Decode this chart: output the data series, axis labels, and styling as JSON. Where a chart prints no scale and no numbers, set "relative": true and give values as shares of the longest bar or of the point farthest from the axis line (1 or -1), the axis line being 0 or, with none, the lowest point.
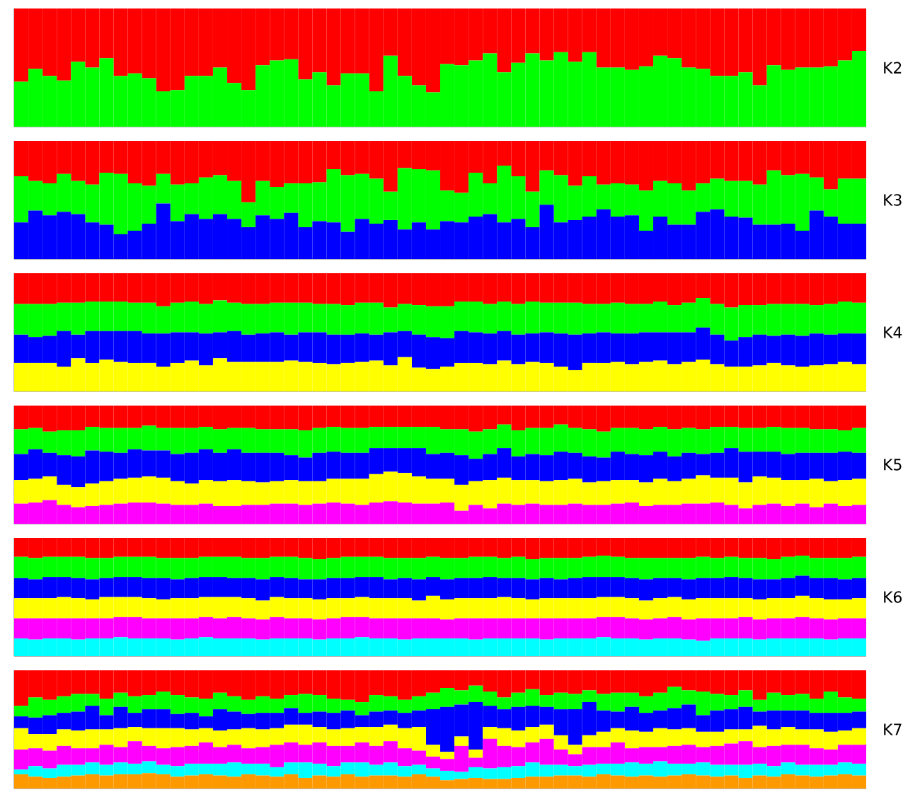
{
  "chart_data": [
    {
      "type": "bar",
      "stacked": true,
      "relative": true,
      "ylabel": "K2",
      "categories": [
        null,
        null,
        null,
        null,
        null,
        null,
        null,
        null,
        null,
        null,
        null,
        null,
        null,
        null,
        null,
        null,
        null,
        null,
        null,
        null,
        null,
        null,
        null,
        null,
        null,
        null,
        null,
        null,
        null,
        null,
        null,
        null,
        null,
        null,
        null,
        null,
        null,
        null,
        null,
        null,
        null,
        null,
        null,
        null,
        null,
        null,
        null,
        null,
        null,
        null,
        null,
        null,
        null,
        null,
        null,
        null,
        null,
        null,
        null,
        null
      ],
      "series": [
        {
          "color": "#00ff00",
          "values": [
            0.38,
            0.49,
            0.43,
            0.39,
            0.55,
            0.5,
            0.58,
            0.43,
            0.45,
            0.41,
            0.3,
            0.31,
            0.43,
            0.43,
            0.5,
            0.37,
            0.31,
            0.52,
            0.56,
            0.57,
            0.4,
            0.46,
            0.35,
            0.45,
            0.45,
            0.3,
            0.6,
            0.43,
            0.35,
            0.29,
            0.53,
            0.52,
            0.56,
            0.62,
            0.46,
            0.54,
            0.62,
            0.56,
            0.63,
            0.55,
            0.63,
            0.5,
            0.5,
            0.48,
            0.51,
            0.6,
            0.58,
            0.5,
            0.49,
            0.43,
            0.43,
            0.46,
            0.35,
            0.52,
            0.48,
            0.5,
            0.5,
            0.51,
            0.56,
            0.64
          ]
        },
        {
          "color": "#ff0000",
          "values": [
            0.62,
            0.51,
            0.57,
            0.61,
            0.45,
            0.5,
            0.42,
            0.57,
            0.55,
            0.59,
            0.7,
            0.69,
            0.57,
            0.57,
            0.5,
            0.63,
            0.69,
            0.48,
            0.44,
            0.43,
            0.6,
            0.54,
            0.65,
            0.55,
            0.55,
            0.7,
            0.4,
            0.57,
            0.65,
            0.71,
            0.47,
            0.48,
            0.44,
            0.38,
            0.54,
            0.46,
            0.38,
            0.44,
            0.37,
            0.45,
            0.37,
            0.5,
            0.5,
            0.52,
            0.49,
            0.4,
            0.42,
            0.5,
            0.51,
            0.57,
            0.57,
            0.54,
            0.65,
            0.48,
            0.52,
            0.5,
            0.5,
            0.49,
            0.44,
            0.36
          ]
        }
      ]
    },
    {
      "type": "bar",
      "stacked": true,
      "relative": true,
      "ylabel": "K3",
      "categories": [
        null,
        null,
        null,
        null,
        null,
        null,
        null,
        null,
        null,
        null,
        null,
        null,
        null,
        null,
        null,
        null,
        null,
        null,
        null,
        null,
        null,
        null,
        null,
        null,
        null,
        null,
        null,
        null,
        null,
        null,
        null,
        null,
        null,
        null,
        null,
        null,
        null,
        null,
        null,
        null,
        null,
        null,
        null,
        null,
        null,
        null,
        null,
        null,
        null,
        null,
        null,
        null,
        null,
        null,
        null,
        null,
        null,
        null,
        null,
        null
      ],
      "series": [
        {
          "color": "#0000ff",
          "values": [
            0.31,
            0.41,
            0.37,
            0.4,
            0.38,
            0.31,
            0.29,
            0.21,
            0.24,
            0.3,
            0.47,
            0.32,
            0.38,
            0.34,
            0.38,
            0.34,
            0.27,
            0.37,
            0.34,
            0.39,
            0.27,
            0.32,
            0.31,
            0.23,
            0.34,
            0.3,
            0.33,
            0.25,
            0.31,
            0.25,
            0.32,
            0.31,
            0.36,
            0.38,
            0.31,
            0.34,
            0.27,
            0.46,
            0.31,
            0.33,
            0.36,
            0.42,
            0.36,
            0.37,
            0.24,
            0.36,
            0.29,
            0.29,
            0.4,
            0.42,
            0.36,
            0.35,
            0.29,
            0.29,
            0.3,
            0.24,
            0.41,
            0.36,
            0.3,
            0.3
          ]
        },
        {
          "color": "#00ff00",
          "values": [
            0.39,
            0.25,
            0.27,
            0.32,
            0.28,
            0.32,
            0.44,
            0.51,
            0.4,
            0.32,
            0.25,
            0.31,
            0.26,
            0.35,
            0.33,
            0.32,
            0.21,
            0.29,
            0.27,
            0.25,
            0.37,
            0.33,
            0.45,
            0.48,
            0.38,
            0.38,
            0.24,
            0.52,
            0.45,
            0.5,
            0.26,
            0.25,
            0.37,
            0.26,
            0.48,
            0.36,
            0.3,
            0.29,
            0.4,
            0.29,
            0.34,
            0.21,
            0.28,
            0.26,
            0.34,
            0.3,
            0.35,
            0.29,
            0.24,
            0.26,
            0.3,
            0.31,
            0.34,
            0.46,
            0.41,
            0.48,
            0.28,
            0.23,
            0.38,
            0.38
          ]
        },
        {
          "color": "#ff0000",
          "values": [
            0.3,
            0.34,
            0.36,
            0.28,
            0.34,
            0.37,
            0.27,
            0.28,
            0.36,
            0.38,
            0.28,
            0.37,
            0.36,
            0.31,
            0.29,
            0.34,
            0.52,
            0.34,
            0.39,
            0.36,
            0.36,
            0.35,
            0.24,
            0.29,
            0.28,
            0.32,
            0.43,
            0.23,
            0.24,
            0.25,
            0.42,
            0.44,
            0.27,
            0.36,
            0.21,
            0.3,
            0.43,
            0.25,
            0.29,
            0.38,
            0.3,
            0.37,
            0.36,
            0.37,
            0.42,
            0.34,
            0.36,
            0.42,
            0.36,
            0.32,
            0.34,
            0.34,
            0.37,
            0.25,
            0.29,
            0.28,
            0.31,
            0.41,
            0.32,
            0.32
          ]
        }
      ]
    },
    {
      "type": "bar",
      "stacked": true,
      "relative": true,
      "ylabel": "K4",
      "categories": [
        null,
        null,
        null,
        null,
        null,
        null,
        null,
        null,
        null,
        null,
        null,
        null,
        null,
        null,
        null,
        null,
        null,
        null,
        null,
        null,
        null,
        null,
        null,
        null,
        null,
        null,
        null,
        null,
        null,
        null,
        null,
        null,
        null,
        null,
        null,
        null,
        null,
        null,
        null,
        null,
        null,
        null,
        null,
        null,
        null,
        null,
        null,
        null,
        null,
        null,
        null,
        null,
        null,
        null,
        null,
        null,
        null,
        null,
        null,
        null
      ],
      "series": [
        {
          "color": "#ffff00",
          "values": [
            0.24,
            0.24,
            0.24,
            0.21,
            0.28,
            0.24,
            0.27,
            0.25,
            0.24,
            0.24,
            0.21,
            0.24,
            0.26,
            0.22,
            0.28,
            0.25,
            0.25,
            0.25,
            0.25,
            0.26,
            0.25,
            0.24,
            0.23,
            0.24,
            0.25,
            0.26,
            0.22,
            0.29,
            0.2,
            0.19,
            0.21,
            0.24,
            0.24,
            0.23,
            0.26,
            0.23,
            0.25,
            0.24,
            0.21,
            0.18,
            0.24,
            0.24,
            0.25,
            0.23,
            0.25,
            0.26,
            0.23,
            0.25,
            0.27,
            0.23,
            0.21,
            0.21,
            0.22,
            0.24,
            0.22,
            0.21,
            0.22,
            0.23,
            0.25,
            0.23
          ]
        },
        {
          "color": "#0000ff",
          "values": [
            0.24,
            0.22,
            0.23,
            0.3,
            0.2,
            0.27,
            0.24,
            0.26,
            0.27,
            0.25,
            0.28,
            0.26,
            0.24,
            0.27,
            0.22,
            0.26,
            0.23,
            0.24,
            0.25,
            0.22,
            0.25,
            0.26,
            0.25,
            0.24,
            0.24,
            0.22,
            0.28,
            0.22,
            0.28,
            0.27,
            0.24,
            0.27,
            0.26,
            0.26,
            0.25,
            0.25,
            0.24,
            0.26,
            0.28,
            0.3,
            0.25,
            0.26,
            0.24,
            0.26,
            0.25,
            0.24,
            0.27,
            0.25,
            0.27,
            0.25,
            0.22,
            0.25,
            0.26,
            0.23,
            0.26,
            0.26,
            0.27,
            0.25,
            0.24,
            0.26
          ]
        },
        {
          "color": "#00ff00",
          "values": [
            0.26,
            0.28,
            0.27,
            0.24,
            0.27,
            0.25,
            0.25,
            0.25,
            0.24,
            0.26,
            0.23,
            0.25,
            0.26,
            0.25,
            0.27,
            0.24,
            0.26,
            0.25,
            0.25,
            0.27,
            0.25,
            0.24,
            0.26,
            0.25,
            0.26,
            0.27,
            0.21,
            0.23,
            0.25,
            0.26,
            0.27,
            0.25,
            0.26,
            0.25,
            0.25,
            0.26,
            0.27,
            0.25,
            0.26,
            0.27,
            0.25,
            0.24,
            0.26,
            0.25,
            0.24,
            0.26,
            0.23,
            0.25,
            0.25,
            0.26,
            0.28,
            0.27,
            0.25,
            0.27,
            0.26,
            0.27,
            0.24,
            0.26,
            0.27,
            0.26
          ]
        },
        {
          "color": "#ff0000",
          "values": [
            0.26,
            0.26,
            0.26,
            0.25,
            0.25,
            0.24,
            0.24,
            0.24,
            0.25,
            0.25,
            0.28,
            0.25,
            0.24,
            0.26,
            0.23,
            0.25,
            0.26,
            0.26,
            0.25,
            0.25,
            0.25,
            0.26,
            0.26,
            0.27,
            0.25,
            0.25,
            0.29,
            0.26,
            0.27,
            0.28,
            0.28,
            0.24,
            0.24,
            0.26,
            0.24,
            0.26,
            0.24,
            0.25,
            0.25,
            0.25,
            0.26,
            0.26,
            0.25,
            0.26,
            0.26,
            0.24,
            0.27,
            0.25,
            0.21,
            0.26,
            0.29,
            0.27,
            0.27,
            0.26,
            0.26,
            0.26,
            0.27,
            0.26,
            0.24,
            0.25
          ]
        }
      ]
    },
    {
      "type": "bar",
      "stacked": true,
      "relative": true,
      "ylabel": "K5",
      "categories": [
        null,
        null,
        null,
        null,
        null,
        null,
        null,
        null,
        null,
        null,
        null,
        null,
        null,
        null,
        null,
        null,
        null,
        null,
        null,
        null,
        null,
        null,
        null,
        null,
        null,
        null,
        null,
        null,
        null,
        null,
        null,
        null,
        null,
        null,
        null,
        null,
        null,
        null,
        null,
        null,
        null,
        null,
        null,
        null,
        null,
        null,
        null,
        null,
        null,
        null,
        null,
        null,
        null,
        null,
        null,
        null,
        null,
        null,
        null,
        null
      ],
      "series": [
        {
          "color": "#ff00ff",
          "values": [
            0.17,
            0.18,
            0.2,
            0.16,
            0.14,
            0.15,
            0.16,
            0.17,
            0.18,
            0.18,
            0.17,
            0.16,
            0.16,
            0.17,
            0.15,
            0.15,
            0.16,
            0.16,
            0.17,
            0.17,
            0.16,
            0.17,
            0.18,
            0.17,
            0.16,
            0.18,
            0.19,
            0.18,
            0.17,
            0.17,
            0.18,
            0.11,
            0.16,
            0.13,
            0.17,
            0.16,
            0.17,
            0.16,
            0.16,
            0.17,
            0.16,
            0.16,
            0.17,
            0.18,
            0.15,
            0.16,
            0.16,
            0.17,
            0.17,
            0.18,
            0.16,
            0.13,
            0.16,
            0.17,
            0.15,
            0.17,
            0.14,
            0.17,
            0.15,
            0.16
          ]
        },
        {
          "color": "#ffff00",
          "values": [
            0.2,
            0.2,
            0.2,
            0.17,
            0.17,
            0.19,
            0.2,
            0.21,
            0.21,
            0.22,
            0.22,
            0.2,
            0.18,
            0.2,
            0.21,
            0.22,
            0.2,
            0.19,
            0.19,
            0.2,
            0.2,
            0.19,
            0.2,
            0.21,
            0.22,
            0.24,
            0.25,
            0.25,
            0.23,
            0.21,
            0.2,
            0.22,
            0.2,
            0.24,
            0.22,
            0.21,
            0.2,
            0.2,
            0.21,
            0.21,
            0.19,
            0.2,
            0.2,
            0.19,
            0.2,
            0.22,
            0.2,
            0.21,
            0.24,
            0.21,
            0.23,
            0.22,
            0.24,
            0.22,
            0.22,
            0.2,
            0.24,
            0.19,
            0.22,
            0.22
          ]
        },
        {
          "color": "#0000ff",
          "values": [
            0.22,
            0.25,
            0.2,
            0.25,
            0.26,
            0.28,
            0.25,
            0.22,
            0.24,
            0.22,
            0.23,
            0.23,
            0.26,
            0.26,
            0.24,
            0.26,
            0.24,
            0.25,
            0.24,
            0.21,
            0.2,
            0.24,
            0.23,
            0.22,
            0.22,
            0.22,
            0.2,
            0.21,
            0.24,
            0.21,
            0.22,
            0.25,
            0.19,
            0.22,
            0.25,
            0.2,
            0.22,
            0.22,
            0.24,
            0.22,
            0.22,
            0.2,
            0.24,
            0.22,
            0.23,
            0.23,
            0.21,
            0.22,
            0.18,
            0.21,
            0.25,
            0.26,
            0.21,
            0.22,
            0.22,
            0.23,
            0.22,
            0.24,
            0.24,
            0.22
          ]
        },
        {
          "color": "#00ff00",
          "values": [
            0.21,
            0.18,
            0.18,
            0.21,
            0.22,
            0.2,
            0.2,
            0.21,
            0.18,
            0.21,
            0.19,
            0.22,
            0.21,
            0.19,
            0.2,
            0.18,
            0.21,
            0.2,
            0.2,
            0.22,
            0.23,
            0.21,
            0.21,
            0.21,
            0.21,
            0.18,
            0.18,
            0.18,
            0.18,
            0.23,
            0.2,
            0.22,
            0.23,
            0.21,
            0.2,
            0.22,
            0.22,
            0.23,
            0.23,
            0.21,
            0.23,
            0.22,
            0.2,
            0.22,
            0.22,
            0.21,
            0.23,
            0.21,
            0.21,
            0.22,
            0.18,
            0.2,
            0.2,
            0.21,
            0.22,
            0.21,
            0.2,
            0.2,
            0.18,
            0.21
          ]
        },
        {
          "color": "#ff0000",
          "values": [
            0.2,
            0.19,
            0.22,
            0.21,
            0.21,
            0.18,
            0.19,
            0.19,
            0.19,
            0.17,
            0.19,
            0.19,
            0.19,
            0.18,
            0.2,
            0.19,
            0.19,
            0.2,
            0.2,
            0.2,
            0.21,
            0.19,
            0.18,
            0.19,
            0.19,
            0.18,
            0.18,
            0.18,
            0.18,
            0.18,
            0.2,
            0.2,
            0.22,
            0.2,
            0.16,
            0.21,
            0.19,
            0.19,
            0.16,
            0.19,
            0.2,
            0.22,
            0.19,
            0.19,
            0.2,
            0.18,
            0.2,
            0.19,
            0.2,
            0.18,
            0.18,
            0.19,
            0.19,
            0.18,
            0.19,
            0.19,
            0.2,
            0.2,
            0.21,
            0.19
          ]
        }
      ]
    },
    {
      "type": "bar",
      "stacked": true,
      "relative": true,
      "ylabel": "K6",
      "categories": [
        null,
        null,
        null,
        null,
        null,
        null,
        null,
        null,
        null,
        null,
        null,
        null,
        null,
        null,
        null,
        null,
        null,
        null,
        null,
        null,
        null,
        null,
        null,
        null,
        null,
        null,
        null,
        null,
        null,
        null,
        null,
        null,
        null,
        null,
        null,
        null,
        null,
        null,
        null,
        null,
        null,
        null,
        null,
        null,
        null,
        null,
        null,
        null,
        null,
        null,
        null,
        null,
        null,
        null,
        null,
        null,
        null,
        null,
        null,
        null
      ],
      "series": [
        {
          "color": "#00ffff",
          "values": [
            0.15,
            0.14,
            0.15,
            0.15,
            0.14,
            0.15,
            0.15,
            0.16,
            0.15,
            0.15,
            0.15,
            0.14,
            0.15,
            0.16,
            0.15,
            0.15,
            0.15,
            0.14,
            0.15,
            0.15,
            0.15,
            0.14,
            0.15,
            0.15,
            0.16,
            0.15,
            0.15,
            0.14,
            0.15,
            0.15,
            0.15,
            0.15,
            0.14,
            0.15,
            0.15,
            0.15,
            0.15,
            0.14,
            0.15,
            0.15,
            0.15,
            0.16,
            0.15,
            0.15,
            0.14,
            0.15,
            0.15,
            0.14,
            0.13,
            0.15,
            0.15,
            0.15,
            0.14,
            0.15,
            0.15,
            0.15,
            0.15,
            0.14,
            0.15,
            0.15
          ]
        },
        {
          "color": "#ff00ff",
          "values": [
            0.17,
            0.18,
            0.17,
            0.17,
            0.18,
            0.17,
            0.17,
            0.17,
            0.18,
            0.17,
            0.17,
            0.18,
            0.17,
            0.17,
            0.17,
            0.18,
            0.17,
            0.17,
            0.18,
            0.17,
            0.17,
            0.17,
            0.17,
            0.18,
            0.17,
            0.17,
            0.17,
            0.18,
            0.17,
            0.17,
            0.16,
            0.17,
            0.18,
            0.17,
            0.17,
            0.17,
            0.17,
            0.18,
            0.17,
            0.17,
            0.17,
            0.17,
            0.18,
            0.17,
            0.17,
            0.17,
            0.18,
            0.17,
            0.19,
            0.17,
            0.17,
            0.18,
            0.17,
            0.17,
            0.17,
            0.18,
            0.17,
            0.17,
            0.17,
            0.17
          ]
        },
        {
          "color": "#ffff00",
          "values": [
            0.17,
            0.17,
            0.17,
            0.18,
            0.17,
            0.16,
            0.18,
            0.17,
            0.17,
            0.17,
            0.16,
            0.17,
            0.17,
            0.17,
            0.18,
            0.17,
            0.17,
            0.16,
            0.17,
            0.17,
            0.17,
            0.17,
            0.17,
            0.16,
            0.17,
            0.17,
            0.17,
            0.17,
            0.15,
            0.19,
            0.17,
            0.17,
            0.17,
            0.17,
            0.18,
            0.17,
            0.16,
            0.17,
            0.17,
            0.17,
            0.17,
            0.17,
            0.17,
            0.17,
            0.16,
            0.17,
            0.17,
            0.17,
            0.17,
            0.17,
            0.17,
            0.16,
            0.17,
            0.17,
            0.17,
            0.18,
            0.17,
            0.17,
            0.16,
            0.17
          ]
        },
        {
          "color": "#0000ff",
          "values": [
            0.17,
            0.16,
            0.18,
            0.17,
            0.17,
            0.17,
            0.16,
            0.17,
            0.17,
            0.17,
            0.18,
            0.16,
            0.17,
            0.17,
            0.17,
            0.16,
            0.17,
            0.18,
            0.17,
            0.17,
            0.16,
            0.17,
            0.17,
            0.17,
            0.17,
            0.18,
            0.16,
            0.17,
            0.18,
            0.16,
            0.17,
            0.17,
            0.17,
            0.18,
            0.16,
            0.17,
            0.17,
            0.17,
            0.16,
            0.17,
            0.18,
            0.17,
            0.17,
            0.17,
            0.18,
            0.17,
            0.16,
            0.17,
            0.17,
            0.17,
            0.18,
            0.17,
            0.17,
            0.16,
            0.17,
            0.17,
            0.17,
            0.18,
            0.17,
            0.17
          ]
        },
        {
          "color": "#00ff00",
          "values": [
            0.18,
            0.18,
            0.17,
            0.17,
            0.18,
            0.18,
            0.17,
            0.17,
            0.17,
            0.18,
            0.17,
            0.18,
            0.17,
            0.17,
            0.17,
            0.18,
            0.17,
            0.18,
            0.17,
            0.18,
            0.18,
            0.17,
            0.17,
            0.18,
            0.17,
            0.17,
            0.18,
            0.17,
            0.18,
            0.17,
            0.18,
            0.17,
            0.18,
            0.17,
            0.17,
            0.18,
            0.17,
            0.17,
            0.18,
            0.17,
            0.17,
            0.18,
            0.17,
            0.17,
            0.18,
            0.17,
            0.17,
            0.18,
            0.18,
            0.17,
            0.17,
            0.17,
            0.18,
            0.17,
            0.18,
            0.17,
            0.17,
            0.17,
            0.18,
            0.18
          ]
        },
        {
          "color": "#ff0000",
          "values": [
            0.16,
            0.17,
            0.16,
            0.16,
            0.16,
            0.17,
            0.17,
            0.16,
            0.16,
            0.16,
            0.17,
            0.17,
            0.17,
            0.16,
            0.16,
            0.16,
            0.17,
            0.17,
            0.16,
            0.16,
            0.17,
            0.18,
            0.17,
            0.16,
            0.16,
            0.16,
            0.17,
            0.17,
            0.17,
            0.16,
            0.17,
            0.17,
            0.16,
            0.16,
            0.17,
            0.16,
            0.18,
            0.17,
            0.17,
            0.17,
            0.16,
            0.15,
            0.16,
            0.17,
            0.17,
            0.17,
            0.17,
            0.17,
            0.16,
            0.17,
            0.16,
            0.17,
            0.17,
            0.18,
            0.16,
            0.15,
            0.17,
            0.17,
            0.17,
            0.16
          ]
        }
      ]
    },
    {
      "type": "bar",
      "stacked": true,
      "relative": true,
      "ylabel": "K7",
      "categories": [
        null,
        null,
        null,
        null,
        null,
        null,
        null,
        null,
        null,
        null,
        null,
        null,
        null,
        null,
        null,
        null,
        null,
        null,
        null,
        null,
        null,
        null,
        null,
        null,
        null,
        null,
        null,
        null,
        null,
        null,
        null,
        null,
        null,
        null,
        null,
        null,
        null,
        null,
        null,
        null,
        null,
        null,
        null,
        null,
        null,
        null,
        null,
        null,
        null,
        null,
        null,
        null,
        null,
        null,
        null,
        null,
        null,
        null,
        null,
        null
      ],
      "series": [
        {
          "color": "#ff9900",
          "values": [
            0.12,
            0.1,
            0.09,
            0.1,
            0.11,
            0.12,
            0.11,
            0.12,
            0.12,
            0.13,
            0.12,
            0.1,
            0.11,
            0.12,
            0.11,
            0.1,
            0.12,
            0.11,
            0.1,
            0.12,
            0.09,
            0.11,
            0.1,
            0.12,
            0.1,
            0.11,
            0.11,
            0.1,
            0.12,
            0.1,
            0.07,
            0.08,
            0.09,
            0.08,
            0.08,
            0.09,
            0.1,
            0.1,
            0.11,
            0.11,
            0.1,
            0.12,
            0.11,
            0.1,
            0.11,
            0.1,
            0.11,
            0.12,
            0.11,
            0.1,
            0.11,
            0.09,
            0.11,
            0.1,
            0.12,
            0.11,
            0.1,
            0.11,
            0.12,
            0.11
          ]
        },
        {
          "color": "#00ffff",
          "values": [
            0.04,
            0.09,
            0.08,
            0.1,
            0.09,
            0.1,
            0.09,
            0.1,
            0.09,
            0.1,
            0.08,
            0.09,
            0.1,
            0.09,
            0.1,
            0.12,
            0.09,
            0.1,
            0.08,
            0.1,
            0.13,
            0.1,
            0.09,
            0.1,
            0.12,
            0.09,
            0.11,
            0.09,
            0.08,
            0.07,
            0.08,
            0.06,
            0.09,
            0.09,
            0.1,
            0.1,
            0.12,
            0.1,
            0.09,
            0.08,
            0.1,
            0.09,
            0.1,
            0.12,
            0.1,
            0.13,
            0.1,
            0.09,
            0.11,
            0.1,
            0.09,
            0.11,
            0.1,
            0.09,
            0.1,
            0.09,
            0.1,
            0.09,
            0.1,
            0.1
          ]
        },
        {
          "color": "#ff00ff",
          "values": [
            0.17,
            0.15,
            0.15,
            0.16,
            0.14,
            0.12,
            0.17,
            0.13,
            0.19,
            0.13,
            0.14,
            0.16,
            0.15,
            0.18,
            0.14,
            0.15,
            0.13,
            0.14,
            0.19,
            0.17,
            0.15,
            0.18,
            0.17,
            0.14,
            0.17,
            0.16,
            0.18,
            0.15,
            0.12,
            0.1,
            0.1,
            0.22,
            0.08,
            0.25,
            0.18,
            0.16,
            0.17,
            0.22,
            0.13,
            0.1,
            0.15,
            0.14,
            0.18,
            0.12,
            0.14,
            0.12,
            0.15,
            0.16,
            0.13,
            0.16,
            0.18,
            0.2,
            0.14,
            0.17,
            0.15,
            0.17,
            0.14,
            0.13,
            0.15,
            0.16
          ]
        },
        {
          "color": "#ffff00",
          "values": [
            0.18,
            0.12,
            0.14,
            0.14,
            0.15,
            0.16,
            0.13,
            0.16,
            0.12,
            0.15,
            0.17,
            0.16,
            0.14,
            0.12,
            0.14,
            0.13,
            0.17,
            0.15,
            0.14,
            0.15,
            0.17,
            0.13,
            0.14,
            0.15,
            0.13,
            0.16,
            0.14,
            0.17,
            0.2,
            0.1,
            0.06,
            0.08,
            0.07,
            0.1,
            0.15,
            0.14,
            0.13,
            0.12,
            0.12,
            0.08,
            0.1,
            0.13,
            0.12,
            0.15,
            0.13,
            0.16,
            0.14,
            0.14,
            0.13,
            0.12,
            0.12,
            0.1,
            0.18,
            0.14,
            0.15,
            0.13,
            0.16,
            0.15,
            0.12,
            0.14
          ]
        },
        {
          "color": "#0000ff",
          "values": [
            0.1,
            0.14,
            0.16,
            0.14,
            0.16,
            0.2,
            0.12,
            0.18,
            0.12,
            0.16,
            0.16,
            0.12,
            0.14,
            0.1,
            0.18,
            0.15,
            0.12,
            0.14,
            0.13,
            0.14,
            0.1,
            0.13,
            0.14,
            0.15,
            0.1,
            0.13,
            0.12,
            0.13,
            0.14,
            0.3,
            0.38,
            0.27,
            0.4,
            0.18,
            0.16,
            0.2,
            0.18,
            0.15,
            0.22,
            0.3,
            0.28,
            0.18,
            0.14,
            0.2,
            0.16,
            0.15,
            0.18,
            0.2,
            0.14,
            0.18,
            0.17,
            0.19,
            0.12,
            0.16,
            0.14,
            0.16,
            0.14,
            0.16,
            0.15,
            0.14
          ]
        },
        {
          "color": "#00ff00",
          "values": [
            0.09,
            0.17,
            0.13,
            0.14,
            0.15,
            0.1,
            0.14,
            0.12,
            0.14,
            0.12,
            0.15,
            0.16,
            0.13,
            0.15,
            0.14,
            0.13,
            0.12,
            0.14,
            0.12,
            0.11,
            0.16,
            0.14,
            0.12,
            0.09,
            0.11,
            0.14,
            0.12,
            0.11,
            0.12,
            0.14,
            0.16,
            0.12,
            0.14,
            0.12,
            0.1,
            0.12,
            0.14,
            0.1,
            0.14,
            0.13,
            0.1,
            0.14,
            0.16,
            0.12,
            0.14,
            0.15,
            0.18,
            0.12,
            0.2,
            0.14,
            0.12,
            0.14,
            0.1,
            0.15,
            0.13,
            0.14,
            0.12,
            0.18,
            0.13,
            0.11
          ]
        },
        {
          "color": "#ff0000",
          "values": [
            0.3,
            0.23,
            0.25,
            0.22,
            0.2,
            0.2,
            0.24,
            0.19,
            0.22,
            0.21,
            0.18,
            0.21,
            0.23,
            0.24,
            0.19,
            0.22,
            0.25,
            0.22,
            0.24,
            0.21,
            0.2,
            0.21,
            0.24,
            0.25,
            0.27,
            0.21,
            0.22,
            0.25,
            0.22,
            0.19,
            0.15,
            0.17,
            0.13,
            0.18,
            0.23,
            0.19,
            0.16,
            0.21,
            0.19,
            0.2,
            0.17,
            0.2,
            0.19,
            0.19,
            0.22,
            0.19,
            0.14,
            0.17,
            0.18,
            0.2,
            0.21,
            0.17,
            0.25,
            0.19,
            0.21,
            0.2,
            0.24,
            0.18,
            0.23,
            0.24
          ]
        }
      ]
    }
  ]
}
